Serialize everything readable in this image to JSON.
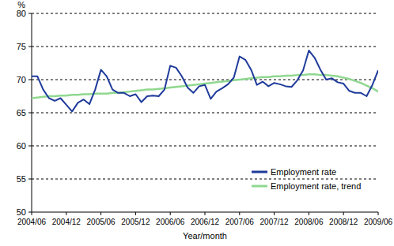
{
  "chart_data": {
    "type": "line",
    "x_label": "Year/month",
    "y_label": "%",
    "categories": [
      "2004/06",
      null,
      null,
      null,
      null,
      null,
      "2004/12",
      null,
      null,
      null,
      null,
      null,
      "2005/06",
      null,
      null,
      null,
      null,
      null,
      "2005/12",
      null,
      null,
      null,
      null,
      null,
      "2006/06",
      null,
      null,
      null,
      null,
      null,
      "2006/12",
      null,
      null,
      null,
      null,
      null,
      "2007/06",
      null,
      null,
      null,
      null,
      null,
      "2007/12",
      null,
      null,
      null,
      null,
      null,
      "2008/06",
      null,
      null,
      null,
      null,
      null,
      "2008/12",
      null,
      null,
      null,
      null,
      null,
      "2009/06"
    ],
    "series": [
      {
        "name": "Employment rate",
        "color": "#1f3b9b",
        "values": [
          70.5,
          70.5,
          68.5,
          67.2,
          66.8,
          67.2,
          66.2,
          65.2,
          66.5,
          67.0,
          66.3,
          68.5,
          71.5,
          70.5,
          68.5,
          68.0,
          68.0,
          67.5,
          67.8,
          66.6,
          67.5,
          67.6,
          67.5,
          68.5,
          72.1,
          71.8,
          70.5,
          68.8,
          68.0,
          69.0,
          69.2,
          67.1,
          68.2,
          68.7,
          69.3,
          70.3,
          73.5,
          73.0,
          71.5,
          69.2,
          69.7,
          69.0,
          69.5,
          69.3,
          69.0,
          68.9,
          69.9,
          71.4,
          74.4,
          73.3,
          71.5,
          70.0,
          70.2,
          69.6,
          69.4,
          68.3,
          68.0,
          68.0,
          67.5,
          69.2,
          71.4
        ]
      },
      {
        "name": "Employment rate, trend",
        "color": "#90d890",
        "values": [
          67.2,
          67.3,
          67.4,
          67.5,
          67.5,
          67.6,
          67.6,
          67.7,
          67.7,
          67.8,
          67.8,
          67.9,
          67.9,
          67.9,
          68.0,
          68.0,
          68.1,
          68.2,
          68.3,
          68.4,
          68.5,
          68.5,
          68.6,
          68.7,
          68.8,
          68.9,
          69.0,
          69.1,
          69.2,
          69.3,
          69.4,
          69.5,
          69.6,
          69.7,
          69.8,
          69.9,
          70.0,
          70.1,
          70.2,
          70.3,
          70.4,
          70.4,
          70.5,
          70.5,
          70.6,
          70.6,
          70.7,
          70.7,
          70.8,
          70.8,
          70.7,
          70.7,
          70.6,
          70.5,
          70.3,
          70.1,
          69.8,
          69.5,
          69.1,
          68.7,
          68.2
        ]
      }
    ],
    "ylim": [
      50,
      80
    ],
    "yticks": [
      50,
      55,
      60,
      65,
      70,
      75,
      80
    ],
    "grid": true,
    "legend": "lower right"
  }
}
